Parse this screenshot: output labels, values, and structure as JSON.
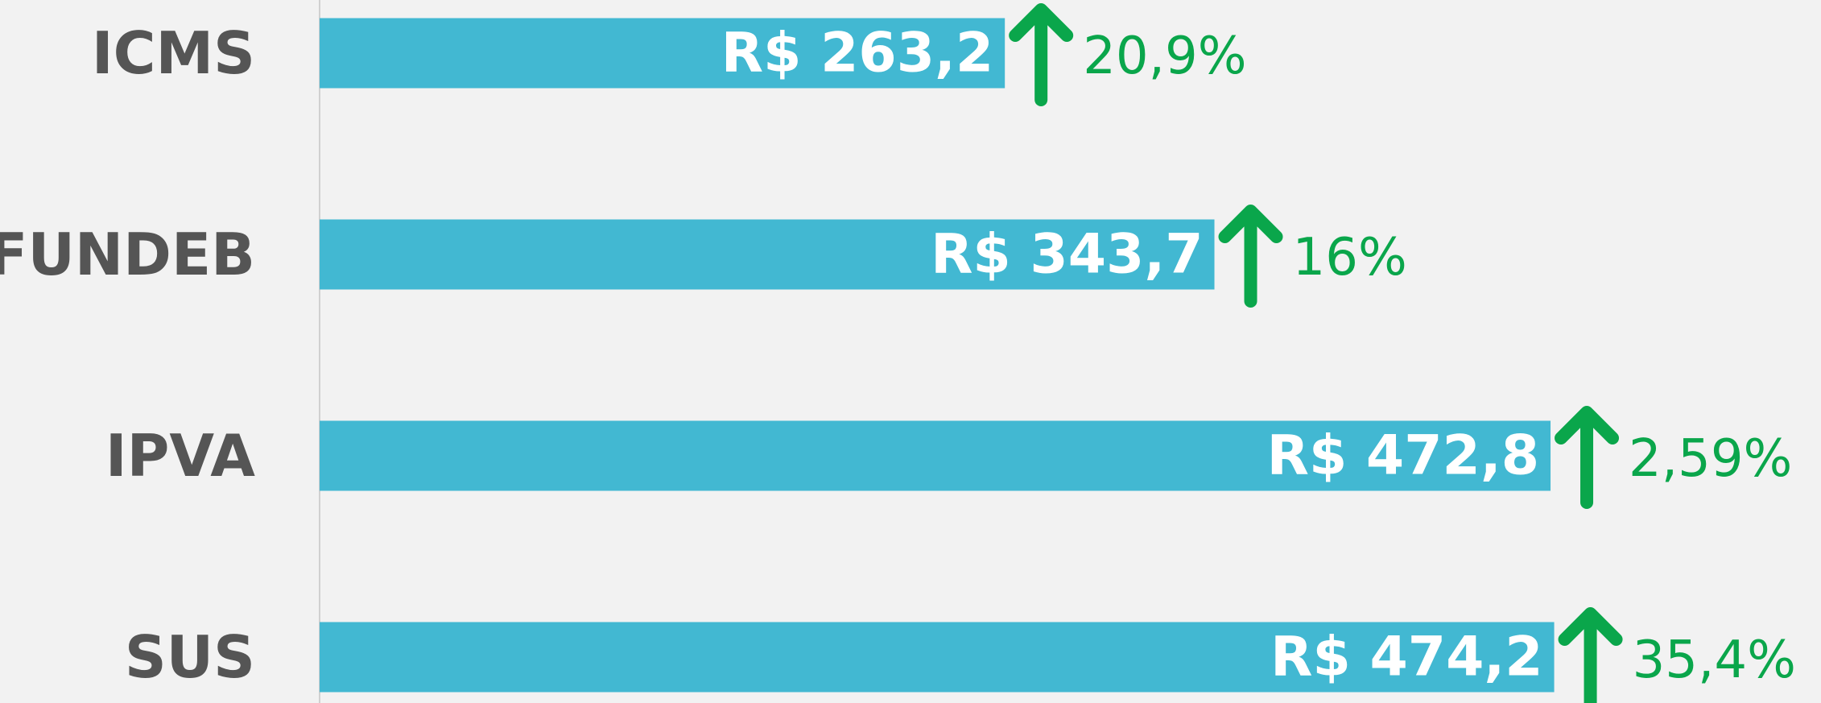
{
  "chart_data": {
    "type": "hbar",
    "categories": [
      "ICMS",
      "FUNDEB",
      "IPVA",
      "SUS"
    ],
    "values": [
      263.2,
      343.7,
      472.8,
      474.2
    ],
    "value_labels": [
      "R$ 263,2",
      "R$ 343,7",
      "R$ 472,8",
      "R$ 474,2"
    ],
    "changes": [
      20.9,
      16,
      2.59,
      35.4
    ],
    "change_labels": [
      "20,9%",
      "16%",
      "2,59%",
      "35,4%"
    ],
    "color": "#42b8d2",
    "change_color": "#0aa64b",
    "xlim": [
      0,
      500
    ]
  }
}
